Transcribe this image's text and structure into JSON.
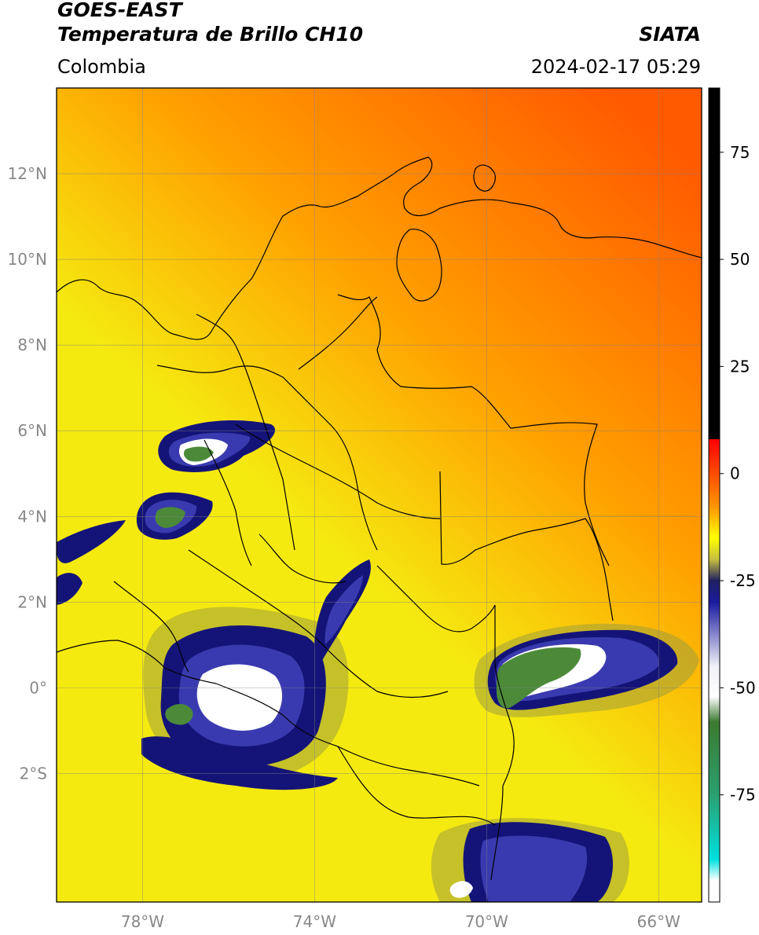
{
  "header": {
    "line1": "GOES-EAST",
    "line2": "Temperatura de Brillo CH10",
    "region": "Colombia",
    "agency": "SIATA",
    "datetime": "2024-02-17 05:29"
  },
  "map": {
    "projection": "PlateCarree",
    "lon_range": [
      -80,
      -65
    ],
    "lat_range": [
      -5,
      14
    ],
    "lon_ticks": [
      {
        "value": -78,
        "label": "78°W"
      },
      {
        "value": -74,
        "label": "74°W"
      },
      {
        "value": -70,
        "label": "70°W"
      },
      {
        "value": -66,
        "label": "66°W"
      }
    ],
    "lat_ticks": [
      {
        "value": 12,
        "label": "12°N"
      },
      {
        "value": 10,
        "label": "10°N"
      },
      {
        "value": 8,
        "label": "8°N"
      },
      {
        "value": 6,
        "label": "6°N"
      },
      {
        "value": 4,
        "label": "4°N"
      },
      {
        "value": 2,
        "label": "2°N"
      },
      {
        "value": 0,
        "label": "0°"
      },
      {
        "value": -2,
        "label": "2°S"
      }
    ],
    "gridlines": true,
    "background_gradient": {
      "north_east": "#ff5a00",
      "mid": "#ffa000",
      "south": "#f5ea10"
    },
    "cloud_colors": {
      "warm_edge": "#9e9e3c",
      "dark_blue": "#141478",
      "blue": "#3a3ab0",
      "white": "#ffffff",
      "green": "#4c8a3a"
    }
  },
  "colorbar": {
    "range": [
      -100,
      90
    ],
    "tick_values": [
      75,
      50,
      25,
      0,
      -25,
      -50,
      -75
    ],
    "tick_labels": [
      "75",
      "50",
      "25",
      "0",
      "-25",
      "-50",
      "-75"
    ],
    "stops": [
      {
        "v": 90,
        "c": "#000000"
      },
      {
        "v": 8,
        "c": "#000000"
      },
      {
        "v": 8,
        "c": "#ff0000"
      },
      {
        "v": -8,
        "c": "#ff9800"
      },
      {
        "v": -15,
        "c": "#ffff00"
      },
      {
        "v": -20,
        "c": "#c8c040"
      },
      {
        "v": -25,
        "c": "#202060"
      },
      {
        "v": -30,
        "c": "#1a1aa0"
      },
      {
        "v": -45,
        "c": "#f0f0f8"
      },
      {
        "v": -52,
        "c": "#ffffff"
      },
      {
        "v": -58,
        "c": "#3c7a30"
      },
      {
        "v": -75,
        "c": "#2aa070"
      },
      {
        "v": -90,
        "c": "#00e0e0"
      },
      {
        "v": -95,
        "c": "#ffffff"
      },
      {
        "v": -100,
        "c": "#ffffff"
      }
    ]
  }
}
